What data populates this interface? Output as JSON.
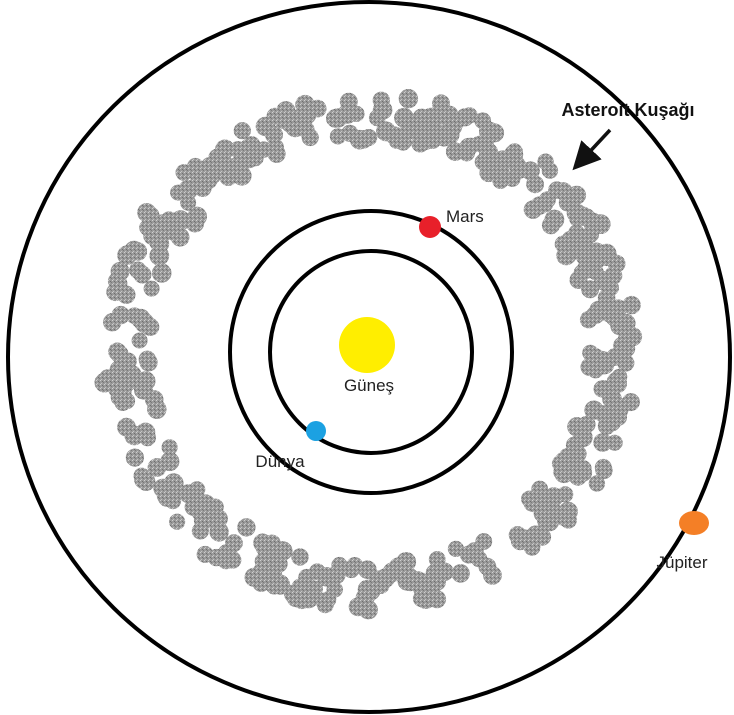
{
  "labels": {
    "belt": "Asteroit Kuşağı",
    "mars": "Mars",
    "sun": "Güneş",
    "earth": "Dünya",
    "jupiter": "Jüpiter"
  }
}
